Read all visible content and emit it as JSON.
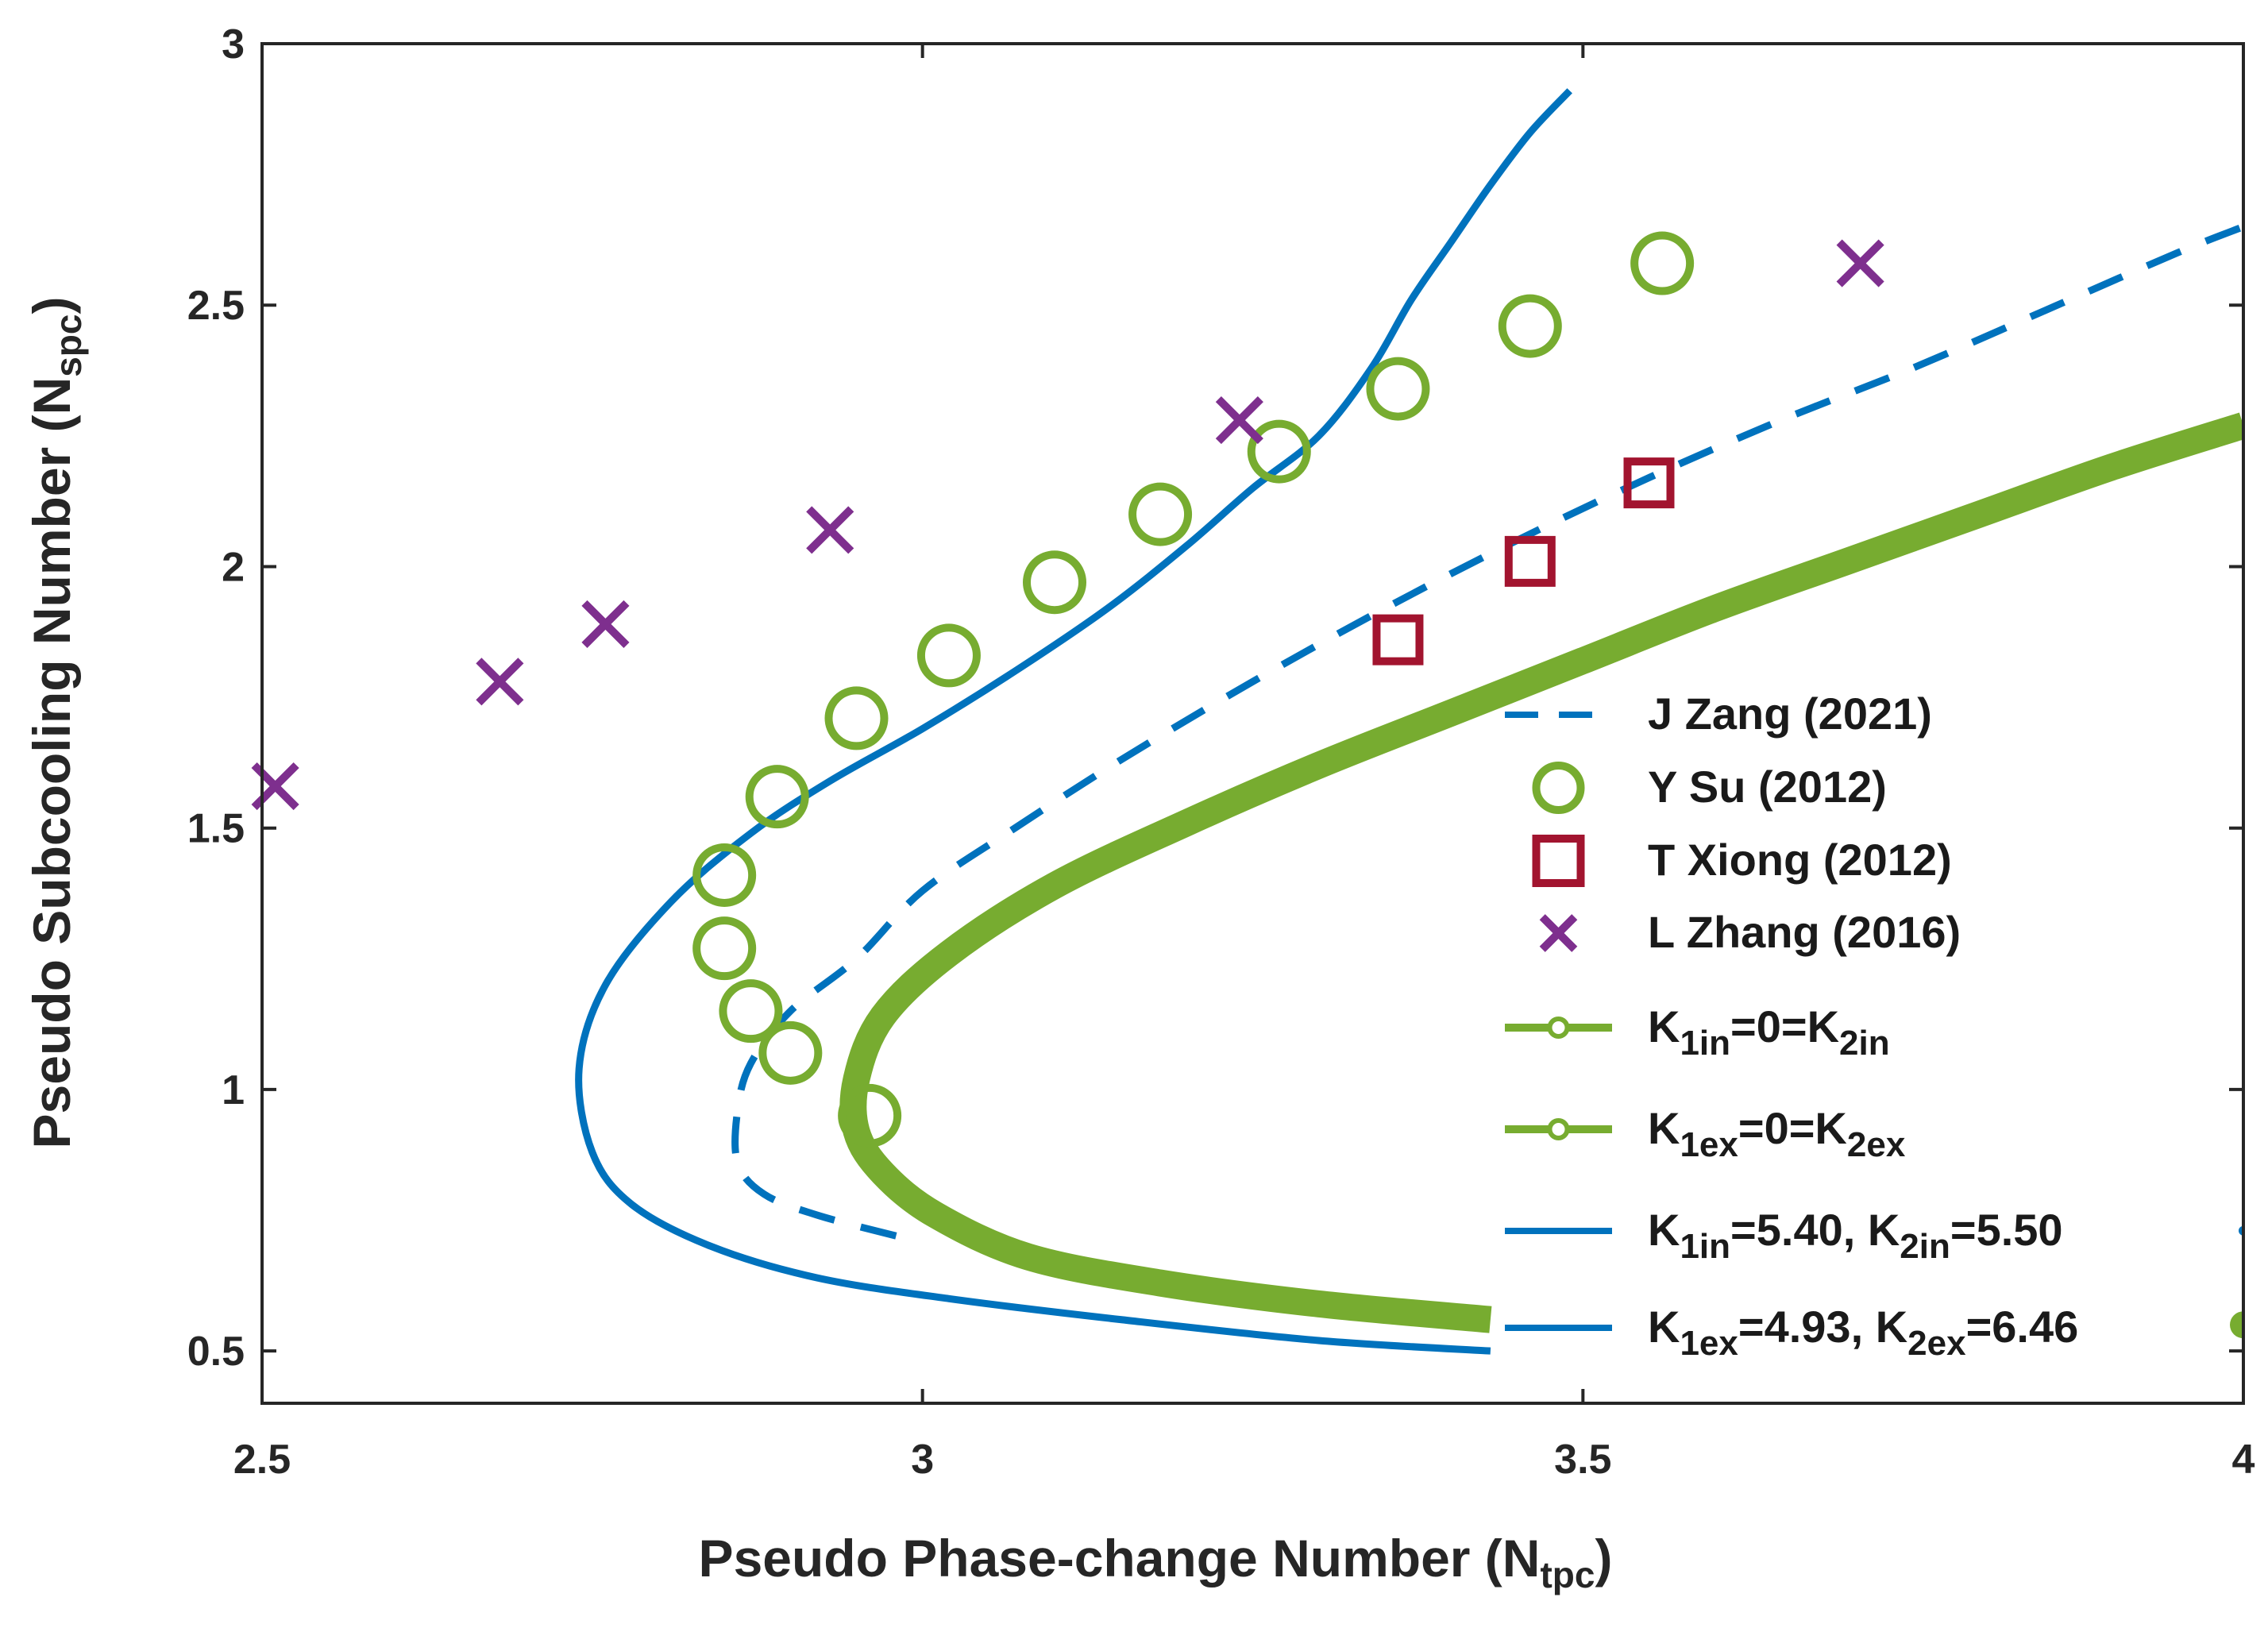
{
  "chart_data": {
    "type": "scatter",
    "title": "",
    "xlabel_main": "Pseudo Phase-change Number (N",
    "xlabel_sub": "tpc",
    "xlabel_end": ")",
    "ylabel_main": "Pseudo Subcooling Number (N",
    "ylabel_sub": "spc",
    "ylabel_end": ")",
    "xlim": [
      2.5,
      4
    ],
    "ylim": [
      0.4,
      3
    ],
    "xticks": [
      2.5,
      3,
      3.5,
      4
    ],
    "xtick_labels": [
      "2.5",
      "3",
      "3.5",
      "4"
    ],
    "yticks": [
      0.5,
      1,
      1.5,
      2,
      2.5,
      3
    ],
    "ytick_labels": [
      "0.5",
      "1",
      "1.5",
      "2",
      "2.5",
      "3"
    ],
    "legend_position": "bottom-right",
    "series": [
      {
        "name": "J Zang (2021)",
        "legend_label": "J Zang (2021)",
        "kind": "line",
        "style": "dashed",
        "color": "#0072BD",
        "x": [
          2.98,
          2.92,
          2.88,
          2.86,
          2.86,
          2.87,
          2.9,
          2.95,
          3.0,
          3.07,
          3.15,
          3.25,
          3.35,
          3.45,
          3.55,
          3.65,
          3.75,
          3.85,
          3.95,
          4.0
        ],
        "y": [
          0.72,
          0.76,
          0.8,
          0.86,
          0.96,
          1.05,
          1.15,
          1.25,
          1.38,
          1.5,
          1.63,
          1.78,
          1.92,
          2.05,
          2.17,
          2.28,
          2.38,
          2.49,
          2.6,
          2.65
        ]
      },
      {
        "name": "Y Su (2012)",
        "legend_label": "Y Su (2012)",
        "kind": "markers",
        "marker": "circle",
        "color": "#77AC30",
        "x": [
          2.96,
          2.9,
          2.87,
          2.85,
          2.85,
          2.89,
          2.95,
          3.02,
          3.1,
          3.18,
          3.27,
          3.36,
          3.46,
          3.56
        ],
        "y": [
          0.95,
          1.07,
          1.15,
          1.27,
          1.41,
          1.56,
          1.71,
          1.83,
          1.97,
          2.1,
          2.22,
          2.34,
          2.46,
          2.58
        ]
      },
      {
        "name": "T Xiong (2012)",
        "legend_label": "T Xiong (2012)",
        "kind": "markers",
        "marker": "square",
        "color": "#A2142F",
        "x": [
          3.36,
          3.46,
          3.55
        ],
        "y": [
          1.86,
          2.01,
          2.16
        ]
      },
      {
        "name": "L Zhang (2016)",
        "legend_label": "L Zhang (2016)",
        "kind": "markers",
        "marker": "x",
        "color": "#7E2F8E",
        "x": [
          2.51,
          2.68,
          2.76,
          2.93,
          3.24,
          3.71
        ],
        "y": [
          1.58,
          1.78,
          1.89,
          2.07,
          2.28,
          2.58
        ]
      },
      {
        "name": "K1in=0=K2in",
        "legend_main": [
          "K",
          "=0=K",
          ""
        ],
        "legend_subs": [
          "1in",
          "2in"
        ],
        "kind": "line",
        "style": "solid-thick",
        "color": "#77AC30",
        "x": [
          3.43,
          3.3,
          3.18,
          3.08,
          3.01,
          2.97,
          2.95,
          2.95,
          2.97,
          3.02,
          3.1,
          3.2,
          3.3,
          3.4,
          3.5,
          3.6,
          3.7,
          3.8,
          3.9,
          4.0
        ],
        "y": [
          0.56,
          0.59,
          0.63,
          0.68,
          0.76,
          0.84,
          0.92,
          1.02,
          1.14,
          1.26,
          1.39,
          1.51,
          1.62,
          1.72,
          1.82,
          1.92,
          2.01,
          2.1,
          2.19,
          2.27
        ]
      },
      {
        "name": "K1ex=0=K2ex",
        "legend_main": [
          "K",
          "=0=K",
          ""
        ],
        "legend_subs": [
          "1ex",
          "2ex"
        ],
        "kind": "line",
        "style": "solid-thick",
        "color": "#77AC30",
        "x": [
          4.0
        ],
        "y": [
          0.55
        ]
      },
      {
        "name": "K1in=5.40, K2in=5.50",
        "legend_main": [
          "K",
          "=5.40, K",
          "=5.50"
        ],
        "legend_subs": [
          "1in",
          "2in"
        ],
        "kind": "line",
        "style": "solid",
        "color": "#0072BD",
        "x": [
          3.43,
          3.3,
          3.15,
          3.02,
          2.92,
          2.84,
          2.78,
          2.75,
          2.74,
          2.76,
          2.81,
          2.87,
          2.93,
          3.0,
          3.07,
          3.14,
          3.2,
          3.25,
          3.3,
          3.34,
          3.37,
          3.4,
          3.43,
          3.46,
          3.49
        ],
        "y": [
          0.5,
          0.52,
          0.56,
          0.6,
          0.64,
          0.7,
          0.78,
          0.88,
          1.04,
          1.2,
          1.36,
          1.49,
          1.59,
          1.69,
          1.8,
          1.92,
          2.04,
          2.15,
          2.25,
          2.38,
          2.51,
          2.62,
          2.73,
          2.83,
          2.91
        ]
      },
      {
        "name": "K1ex=4.93, K2ex=6.46",
        "legend_main": [
          "K",
          "=4.93, K",
          "=6.46"
        ],
        "legend_subs": [
          "1ex",
          "2ex"
        ],
        "kind": "line",
        "style": "solid",
        "color": "#0072BD",
        "x": [
          4.0
        ],
        "y": [
          0.73
        ]
      }
    ]
  }
}
